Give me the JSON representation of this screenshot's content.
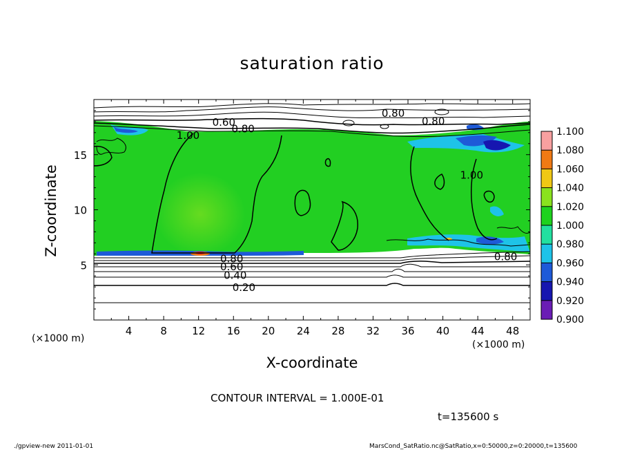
{
  "chart_data": {
    "type": "heatmap",
    "title": "saturation ratio",
    "xlabel": "X-coordinate",
    "ylabel": "Z-coordinate",
    "x_unit_label": "(×1000 m)",
    "xlim": [
      0,
      50
    ],
    "ylim": [
      0,
      20
    ],
    "x_ticks": [
      4,
      8,
      12,
      16,
      20,
      24,
      28,
      32,
      36,
      40,
      44,
      48
    ],
    "y_ticks": [
      5,
      10,
      15
    ],
    "colorbar": {
      "levels": [
        0.9,
        0.92,
        0.94,
        0.96,
        0.98,
        1.0,
        1.02,
        1.04,
        1.06,
        1.08,
        1.1
      ],
      "tick_labels": [
        "0.900",
        "0.920",
        "0.940",
        "0.960",
        "0.980",
        "1.000",
        "1.020",
        "1.040",
        "1.060",
        "1.080",
        "1.100"
      ],
      "colors": [
        "#6a1db5",
        "#1616b0",
        "#1e5ad8",
        "#1ec3e8",
        "#22e0a0",
        "#1ed21e",
        "#8ae21e",
        "#f0c814",
        "#f07a14",
        "#ee1e1e",
        "#f8a0a0"
      ]
    },
    "field": {
      "lower_saturated_boundary_z": 6,
      "upper_saturated_boundary_z": 17,
      "background_color": "#22cf22",
      "notes": "bulk of domain between z≈6 and z≈17 km is near-saturated (≈1.0); ratio decreases to 0 below and above"
    },
    "contour_interval_text": "CONTOUR INTERVAL = 1.000E-01",
    "contour_labels": [
      {
        "text": "0.20",
        "x": 17.2,
        "y": 3.0
      },
      {
        "text": "0.40",
        "x": 16.2,
        "y": 4.1
      },
      {
        "text": "0.60",
        "x": 15.8,
        "y": 4.9
      },
      {
        "text": "0.80",
        "x": 15.8,
        "y": 5.6
      },
      {
        "text": "0.80",
        "x": 47.2,
        "y": 5.8
      },
      {
        "text": "1.00",
        "x": 10.8,
        "y": 16.8
      },
      {
        "text": "0.60",
        "x": 14.9,
        "y": 18.0
      },
      {
        "text": "0.80",
        "x": 17.1,
        "y": 17.4
      },
      {
        "text": "0.80",
        "x": 34.3,
        "y": 18.8
      },
      {
        "text": "0.80",
        "x": 38.9,
        "y": 18.1
      },
      {
        "text": "1.00",
        "x": 43.3,
        "y": 13.2
      }
    ],
    "time_label": "t=135600 s"
  },
  "footer": {
    "left": "./gpview-new   2011-01-01",
    "right": "MarsCond_SatRatio.nc@SatRatio,x=0:50000,z=0:20000,t=135600"
  }
}
